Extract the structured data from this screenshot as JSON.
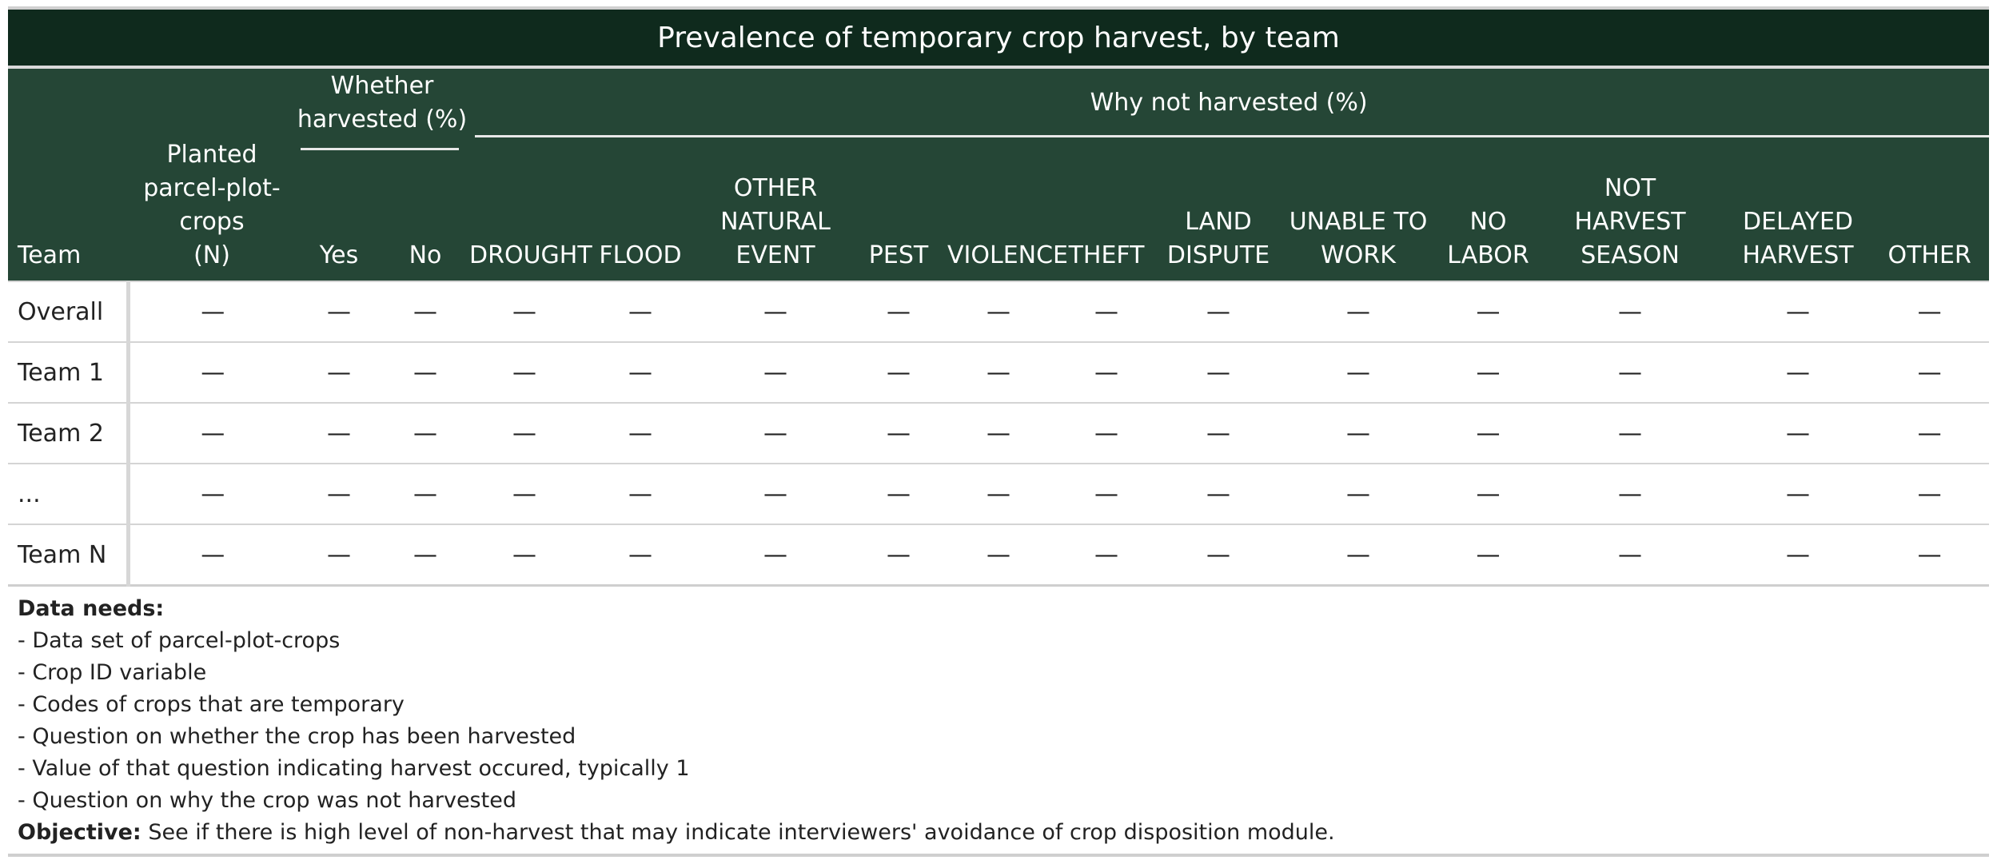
{
  "table": {
    "title": "Prevalence of temporary crop harvest, by team",
    "headers": {
      "team": "Team",
      "planted_line1": "Planted",
      "planted_line2": "parcel-plot-",
      "planted_line3": "crops",
      "planted_line4": "(N)",
      "whether_line1": "Whether",
      "whether_line2": "harvested (%)",
      "why_not": "Why not harvested (%)",
      "columns": [
        {
          "l1": "",
          "l2": "",
          "l3": "Yes"
        },
        {
          "l1": "",
          "l2": "",
          "l3": "No"
        },
        {
          "l1": "",
          "l2": "",
          "l3": "DROUGHT"
        },
        {
          "l1": "",
          "l2": "",
          "l3": "FLOOD"
        },
        {
          "l1": "OTHER",
          "l2": "NATURAL",
          "l3": "EVENT"
        },
        {
          "l1": "",
          "l2": "",
          "l3": "PEST"
        },
        {
          "l1": "",
          "l2": "",
          "l3": "VIOLENCE"
        },
        {
          "l1": "",
          "l2": "",
          "l3": "THEFT"
        },
        {
          "l1": "",
          "l2": "LAND",
          "l3": "DISPUTE"
        },
        {
          "l1": "",
          "l2": "UNABLE TO",
          "l3": "WORK"
        },
        {
          "l1": "",
          "l2": "NO",
          "l3": "LABOR"
        },
        {
          "l1": "NOT",
          "l2": "HARVEST",
          "l3": "SEASON"
        },
        {
          "l1": "",
          "l2": "DELAYED",
          "l3": "HARVEST"
        },
        {
          "l1": "",
          "l2": "",
          "l3": "OTHER"
        }
      ]
    },
    "rows": [
      {
        "team": "Overall",
        "cells": [
          "—",
          "—",
          "—",
          "—",
          "—",
          "—",
          "—",
          "—",
          "—",
          "—",
          "—",
          "—",
          "—",
          "—",
          "—"
        ]
      },
      {
        "team": "Team 1",
        "cells": [
          "—",
          "—",
          "—",
          "—",
          "—",
          "—",
          "—",
          "—",
          "—",
          "—",
          "—",
          "—",
          "—",
          "—",
          "—"
        ]
      },
      {
        "team": "Team 2",
        "cells": [
          "—",
          "—",
          "—",
          "—",
          "—",
          "—",
          "—",
          "—",
          "—",
          "—",
          "—",
          "—",
          "—",
          "—",
          "—"
        ]
      },
      {
        "team": "...",
        "cells": [
          "—",
          "—",
          "—",
          "—",
          "—",
          "—",
          "—",
          "—",
          "—",
          "—",
          "—",
          "—",
          "—",
          "—",
          "—"
        ]
      },
      {
        "team": "Team N",
        "cells": [
          "—",
          "—",
          "—",
          "—",
          "—",
          "—",
          "—",
          "—",
          "—",
          "—",
          "—",
          "—",
          "—",
          "—",
          "—"
        ]
      }
    ]
  },
  "notes": {
    "data_needs_label": "Data needs:",
    "data_needs": [
      "- Data set of parcel-plot-crops",
      "- Crop ID variable",
      "- Codes of crops that are temporary",
      "- Question on whether the crop has been harvested",
      "- Value of that question indicating harvest occured, typically 1",
      "- Question on why the crop was not harvested"
    ],
    "objective_label": "Objective:",
    "objective_text": " See if there is high level of non-harvest that may indicate interviewers' avoidance of crop disposition module."
  }
}
